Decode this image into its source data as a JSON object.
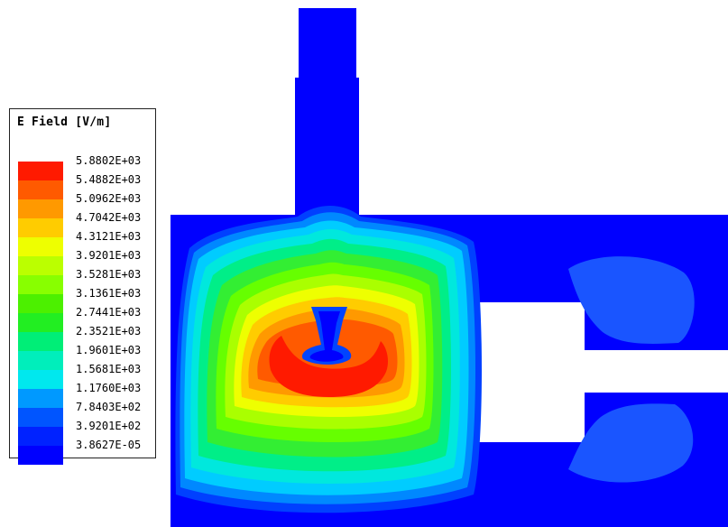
{
  "legend": {
    "title": "E Field [V/m]",
    "levels": [
      {
        "label": "5.8802E+03",
        "color": "#ff1a00"
      },
      {
        "label": "5.4882E+03",
        "color": "#ff5a00"
      },
      {
        "label": "5.0962E+03",
        "color": "#ff9900"
      },
      {
        "label": "4.7042E+03",
        "color": "#ffcc00"
      },
      {
        "label": "4.3121E+03",
        "color": "#eeff00"
      },
      {
        "label": "3.9201E+03",
        "color": "#bbff00"
      },
      {
        "label": "3.5281E+03",
        "color": "#88ff00"
      },
      {
        "label": "3.1361E+03",
        "color": "#4cf000"
      },
      {
        "label": "2.7441E+03",
        "color": "#22ee22"
      },
      {
        "label": "2.3521E+03",
        "color": "#00ee77"
      },
      {
        "label": "1.9601E+03",
        "color": "#00eebb"
      },
      {
        "label": "1.5681E+03",
        "color": "#00e8ee"
      },
      {
        "label": "1.1760E+03",
        "color": "#0099ff"
      },
      {
        "label": "7.8403E+02",
        "color": "#0055ff"
      },
      {
        "label": "3.9201E+02",
        "color": "#0022ff"
      },
      {
        "label": "3.8627E-05",
        "color": "#0000ff"
      }
    ]
  }
}
